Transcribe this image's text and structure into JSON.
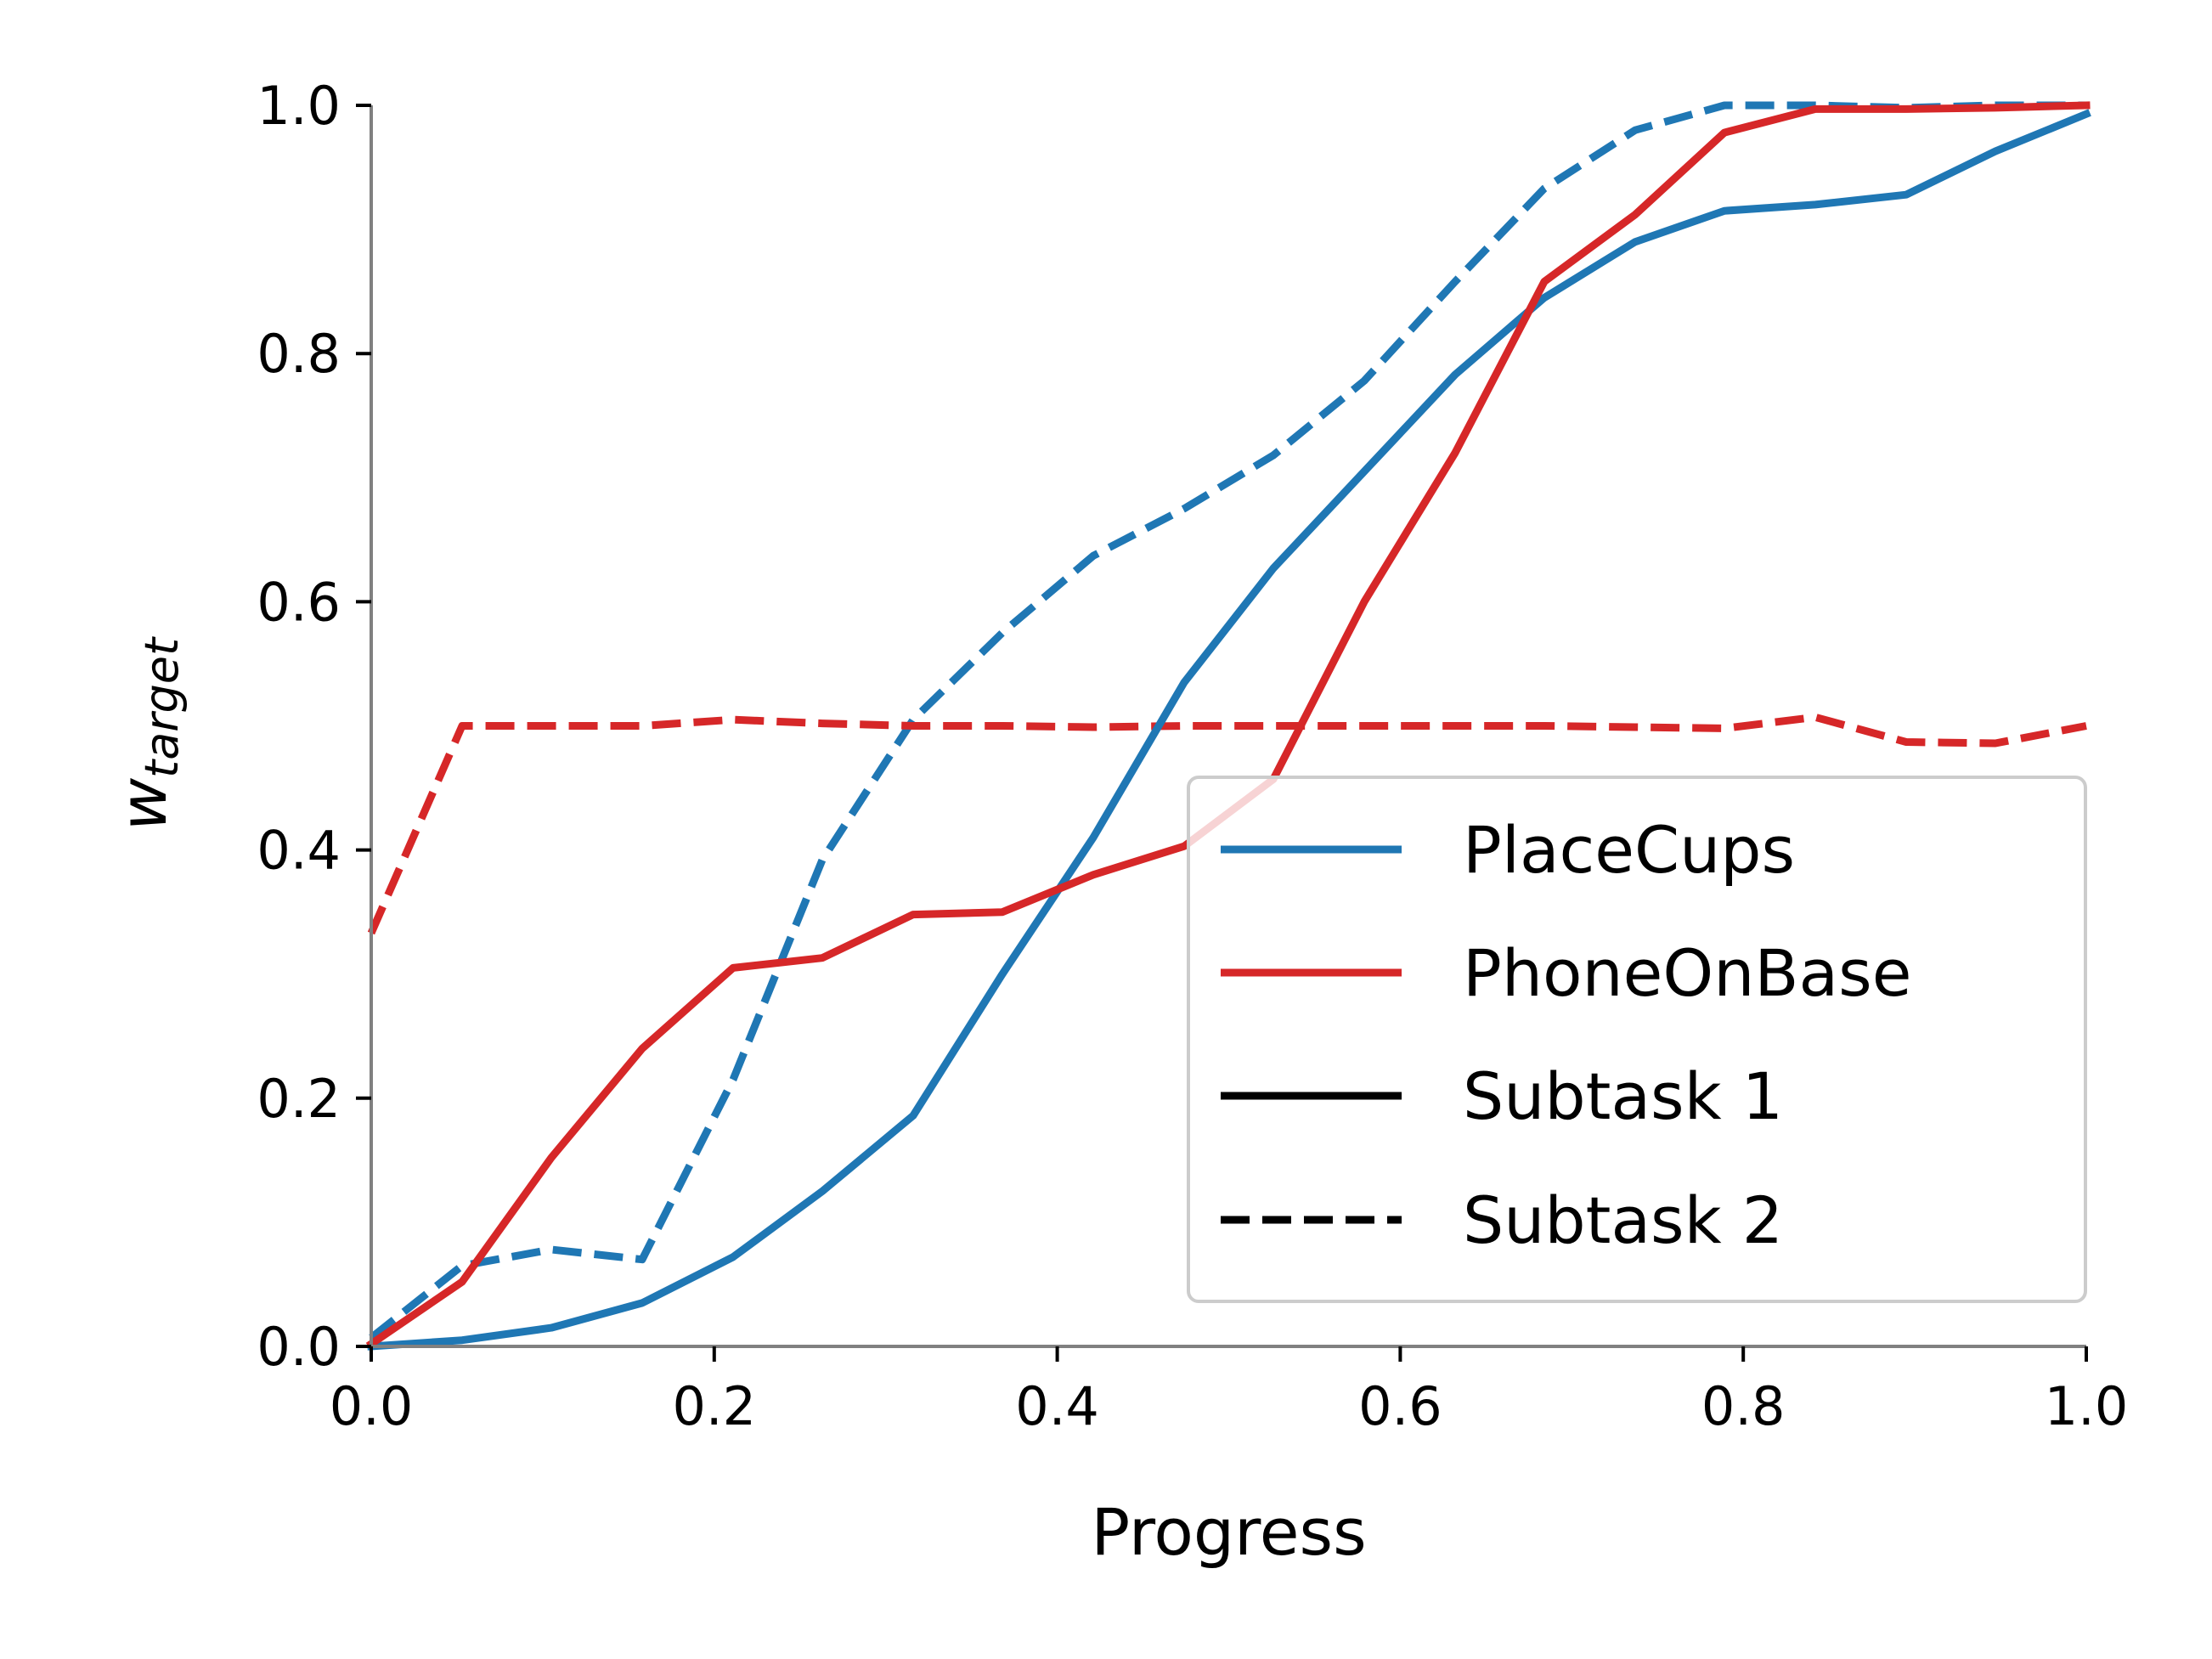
{
  "chart_data": {
    "type": "line",
    "xlabel": "Progress",
    "ylabel_base": "w",
    "ylabel_sub": "target",
    "xlim": [
      0.0,
      1.0
    ],
    "ylim": [
      0.0,
      1.0
    ],
    "xticks": [
      0.0,
      0.2,
      0.4,
      0.6,
      0.8,
      1.0
    ],
    "yticks": [
      0.0,
      0.2,
      0.4,
      0.6,
      0.8,
      1.0
    ],
    "xtick_labels": [
      "0.0",
      "0.2",
      "0.4",
      "0.6",
      "0.8",
      "1.0"
    ],
    "ytick_labels": [
      "0.0",
      "0.2",
      "0.4",
      "0.6",
      "0.8",
      "1.0"
    ],
    "grid": false,
    "legend_position": "lower-right",
    "series": [
      {
        "name": "PlaceCups",
        "subtask": "Subtask 1",
        "color": "#1f77b4",
        "style": "solid",
        "x": [
          0.0,
          0.053,
          0.105,
          0.158,
          0.211,
          0.263,
          0.316,
          0.368,
          0.421,
          0.474,
          0.526,
          0.579,
          0.632,
          0.684,
          0.737,
          0.789,
          0.842,
          0.895,
          0.947,
          1.0
        ],
        "y": [
          0.0,
          0.005,
          0.015,
          0.035,
          0.072,
          0.125,
          0.186,
          0.3,
          0.41,
          0.535,
          0.627,
          0.705,
          0.783,
          0.845,
          0.89,
          0.915,
          0.92,
          0.928,
          0.963,
          0.993
        ]
      },
      {
        "name": "PlaceCups",
        "subtask": "Subtask 2",
        "color": "#1f77b4",
        "style": "dashed",
        "x": [
          0.0,
          0.053,
          0.105,
          0.158,
          0.211,
          0.263,
          0.316,
          0.368,
          0.421,
          0.474,
          0.526,
          0.579,
          0.632,
          0.684,
          0.737,
          0.789,
          0.842,
          0.895,
          0.947,
          1.0
        ],
        "y": [
          0.007,
          0.065,
          0.078,
          0.07,
          0.215,
          0.392,
          0.505,
          0.575,
          0.637,
          0.675,
          0.718,
          0.778,
          0.858,
          0.933,
          0.98,
          1.0,
          1.0,
          0.998,
          1.0,
          1.0
        ]
      },
      {
        "name": "PhoneOnBase",
        "subtask": "Subtask 1",
        "color": "#d62728",
        "style": "solid",
        "x": [
          0.0,
          0.053,
          0.105,
          0.158,
          0.211,
          0.263,
          0.316,
          0.368,
          0.421,
          0.474,
          0.526,
          0.579,
          0.632,
          0.684,
          0.737,
          0.789,
          0.842,
          0.895,
          0.947,
          1.0
        ],
        "y": [
          0.002,
          0.052,
          0.152,
          0.24,
          0.305,
          0.313,
          0.348,
          0.35,
          0.38,
          0.403,
          0.457,
          0.6,
          0.72,
          0.858,
          0.912,
          0.978,
          0.997,
          0.997,
          0.998,
          1.0
        ]
      },
      {
        "name": "PhoneOnBase",
        "subtask": "Subtask 2",
        "color": "#d62728",
        "style": "dashed",
        "x": [
          0.0,
          0.053,
          0.105,
          0.158,
          0.211,
          0.263,
          0.316,
          0.368,
          0.421,
          0.474,
          0.526,
          0.579,
          0.632,
          0.684,
          0.737,
          0.789,
          0.842,
          0.895,
          0.947,
          1.0
        ],
        "y": [
          0.333,
          0.5,
          0.5,
          0.5,
          0.505,
          0.502,
          0.5,
          0.5,
          0.499,
          0.5,
          0.5,
          0.5,
          0.5,
          0.5,
          0.499,
          0.498,
          0.507,
          0.487,
          0.486,
          0.5
        ]
      }
    ],
    "legend": [
      {
        "label": "PlaceCups",
        "color": "#1f77b4",
        "style": "solid"
      },
      {
        "label": "PhoneOnBase",
        "color": "#d62728",
        "style": "solid"
      },
      {
        "label": "Subtask 1",
        "color": "#000000",
        "style": "solid"
      },
      {
        "label": "Subtask 2",
        "color": "#000000",
        "style": "dashed"
      }
    ]
  }
}
